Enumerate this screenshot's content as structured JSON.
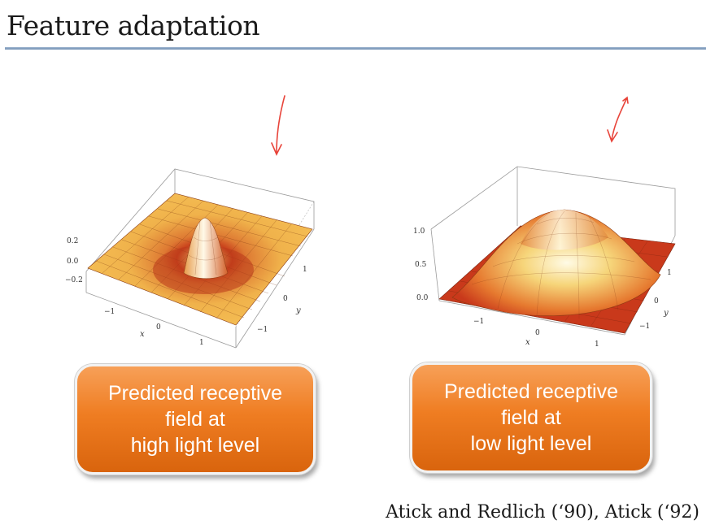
{
  "slide": {
    "title": "Feature adaptation",
    "citation": "Atick and Redlich (‘90), Atick (‘92)"
  },
  "left_panel": {
    "plot": {
      "z_ticks": [
        "0.2",
        "0.0",
        "−0.2"
      ],
      "x_ticks": [
        "−1",
        "0",
        "1"
      ],
      "y_ticks": [
        "1",
        "0",
        "−1"
      ],
      "x_label": "x",
      "y_label": "y"
    },
    "caption_lines": [
      "Predicted receptive",
      "field at",
      "high light level"
    ]
  },
  "right_panel": {
    "plot": {
      "z_ticks": [
        "1.0",
        "0.5",
        "0.0"
      ],
      "x_ticks": [
        "−1",
        "0",
        "1"
      ],
      "y_ticks": [
        "1",
        "0",
        "−1"
      ],
      "x_label": "x",
      "y_label": "y"
    },
    "caption_lines": [
      "Predicted receptive",
      "field at",
      "low light level"
    ]
  },
  "colors": {
    "annotation_arrow": "#e8443a",
    "caption_fill": "#ef7d22",
    "title_rule": "#6f8fb4"
  }
}
